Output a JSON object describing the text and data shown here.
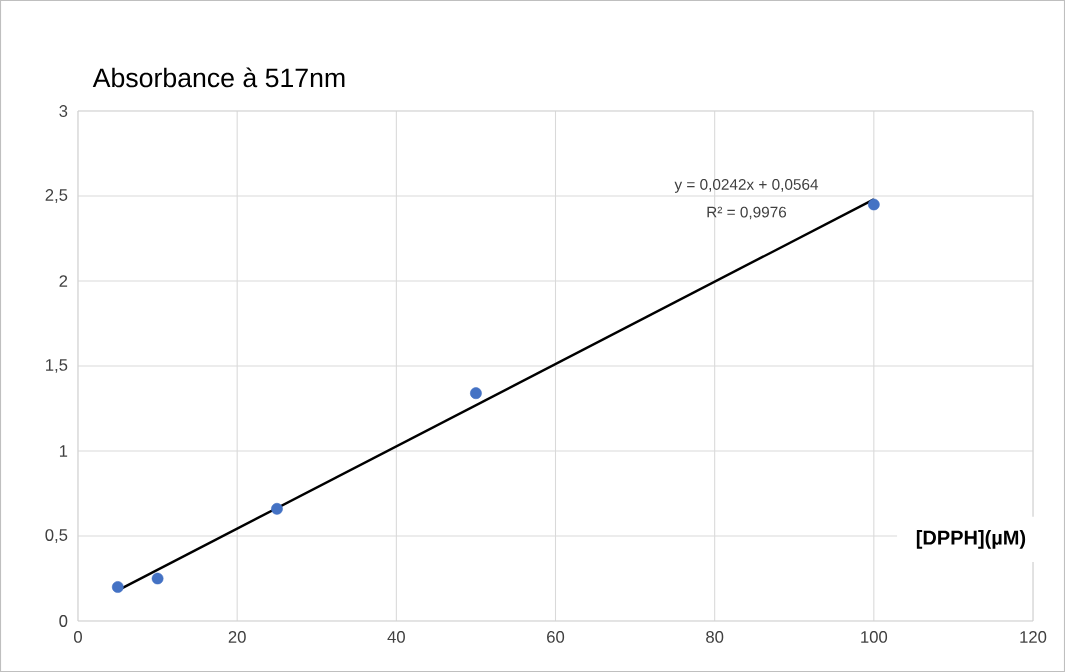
{
  "chart_data": {
    "type": "scatter",
    "title": "Absorbance à 517nm",
    "xlabel": "[DPPH](µM)",
    "annotations": [
      "y = 0,0242x + 0,0564",
      "R² = 0,9976"
    ],
    "series": [
      {
        "type": "scatter",
        "color": "#4472c4",
        "marker": "circle",
        "x": [
          5,
          10,
          25,
          50,
          100
        ],
        "values": [
          0.2,
          0.25,
          0.66,
          1.34,
          2.45
        ]
      },
      {
        "type": "line",
        "color": "#000000",
        "marker": "none",
        "line_style": "solid",
        "x": [
          5,
          100
        ],
        "values": [
          0.18,
          2.48
        ]
      }
    ],
    "xlim": [
      0,
      120
    ],
    "ylim": [
      0,
      3
    ],
    "xticks": [
      0,
      20,
      40,
      60,
      80,
      100,
      120
    ],
    "yticks": [
      0,
      {
        "value": 0.5,
        "label": "0,5"
      },
      1,
      {
        "value": 1.5,
        "label": "1,5"
      },
      2,
      {
        "value": 2.5,
        "label": "2,5"
      },
      3
    ],
    "grid": true
  }
}
